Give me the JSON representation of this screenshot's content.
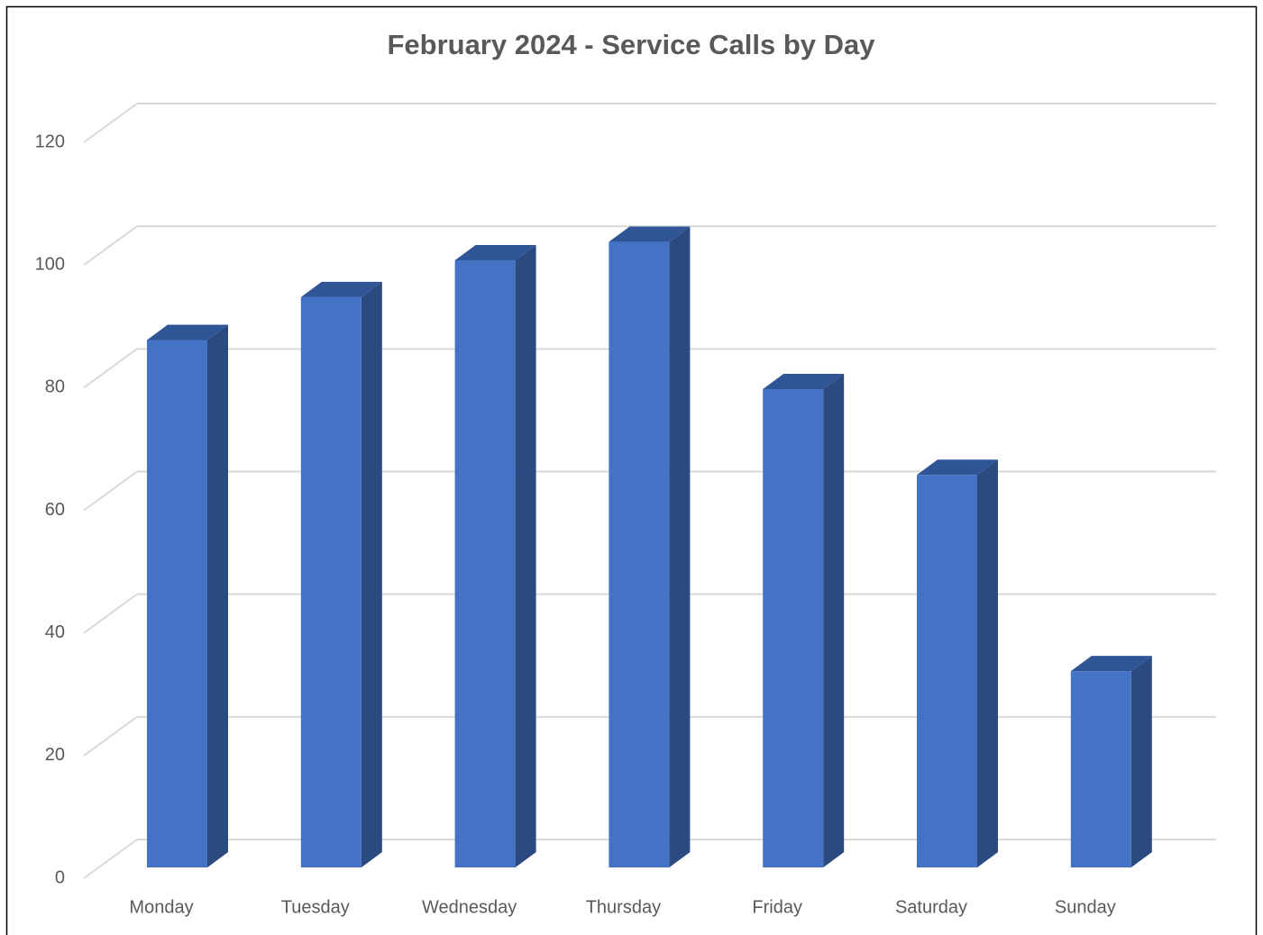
{
  "chart_data": {
    "type": "bar3d",
    "title": "February 2024 - Service Calls by Day",
    "categories": [
      "Monday",
      "Tuesday",
      "Wednesday",
      "Thursday",
      "Friday",
      "Saturday",
      "Sunday"
    ],
    "values": [
      86,
      93,
      99,
      102,
      78,
      64,
      32
    ],
    "color": "#4472c4",
    "ylim": [
      0,
      120
    ],
    "yticks": [
      0,
      20,
      40,
      60,
      80,
      100,
      120
    ],
    "grid": true
  }
}
